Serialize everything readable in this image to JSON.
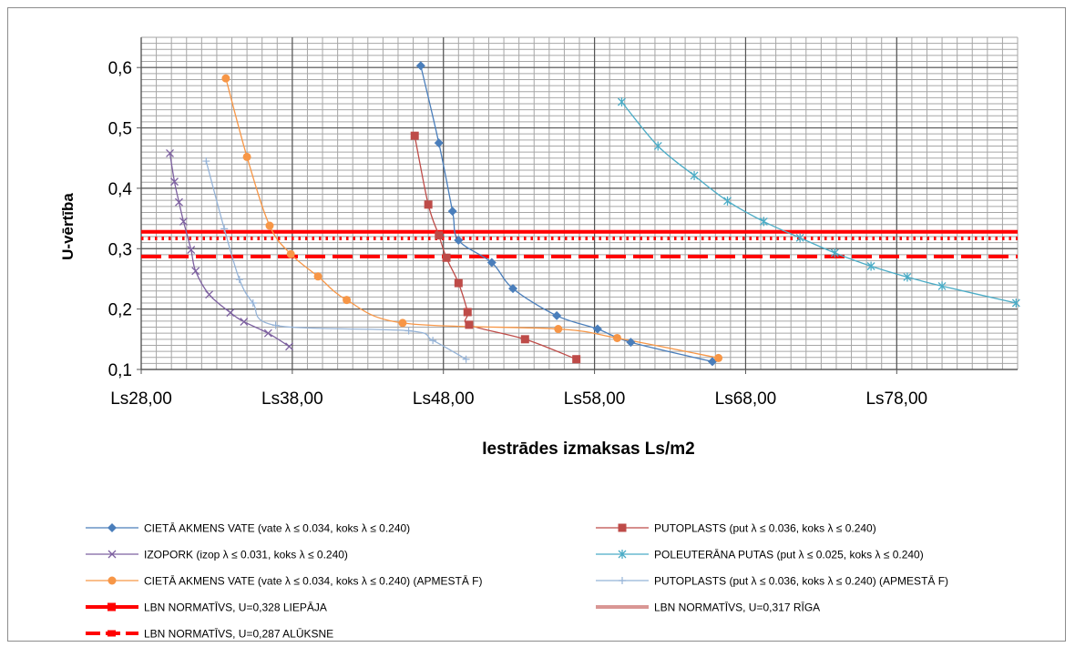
{
  "chart_data": {
    "type": "scatter",
    "title": "",
    "xlabel": "Iestrādes izmaksas Ls/m2",
    "ylabel": "U-vērtība",
    "xlim": [
      28,
      86
    ],
    "ylim": [
      0.1,
      0.65
    ],
    "x_ticks": [
      28,
      38,
      48,
      58,
      68,
      78
    ],
    "x_tick_labels": [
      "Ls28,00",
      "Ls38,00",
      "Ls48,00",
      "Ls58,00",
      "Ls68,00",
      "Ls78,00"
    ],
    "y_ticks": [
      0.1,
      0.2,
      0.3,
      0.4,
      0.5,
      0.6
    ],
    "y_tick_labels": [
      "0,1",
      "0,2",
      "0,3",
      "0,4",
      "0,5",
      "0,6"
    ],
    "grid": true,
    "minor_grid": {
      "x_step": 1,
      "y_step": 0.01
    },
    "legend_position": "bottom",
    "series": [
      {
        "name": "CIETĀ AKMENS VATE (vate λ ≤ 0.034, koks λ ≤ 0.240)",
        "color": "#4a7ebb",
        "marker": "diamond",
        "line": "smooth",
        "x": [
          46.5,
          47.7,
          48.6,
          49.0,
          51.2,
          52.6,
          55.5,
          58.2,
          60.4,
          65.8
        ],
        "y": [
          0.603,
          0.475,
          0.362,
          0.314,
          0.277,
          0.234,
          0.189,
          0.167,
          0.145,
          0.113
        ]
      },
      {
        "name": "PUTOPLASTS (put λ ≤ 0.036, koks λ ≤ 0.240)",
        "color": "#be4b48",
        "marker": "square",
        "line": "smooth",
        "x": [
          46.1,
          47.0,
          47.7,
          48.2,
          49.0,
          49.6,
          49.7,
          53.4,
          56.8
        ],
        "y": [
          0.487,
          0.373,
          0.322,
          0.285,
          0.243,
          0.195,
          0.174,
          0.15,
          0.117
        ]
      },
      {
        "name": "IZOPORK (izop λ ≤ 0.031, koks λ ≤ 0.240)",
        "color": "#7d60a0",
        "marker": "x",
        "line": "smooth",
        "x": [
          29.9,
          30.2,
          30.5,
          30.8,
          31.3,
          31.6,
          32.5,
          33.9,
          34.8,
          36.4,
          37.8
        ],
        "y": [
          0.458,
          0.411,
          0.377,
          0.345,
          0.298,
          0.263,
          0.224,
          0.194,
          0.179,
          0.16,
          0.138
        ]
      },
      {
        "name": "POLEUTERĀNA PUTAS (put λ ≤ 0.025, koks λ ≤ 0.240)",
        "color": "#4bacc6",
        "marker": "asterisk",
        "line": "smooth",
        "x": [
          59.8,
          62.2,
          64.6,
          66.8,
          69.2,
          71.6,
          73.9,
          76.3,
          78.7,
          81.0,
          85.9
        ],
        "y": [
          0.543,
          0.47,
          0.421,
          0.379,
          0.345,
          0.318,
          0.293,
          0.271,
          0.253,
          0.238,
          0.21
        ]
      },
      {
        "name": "CIETĀ AKMENS VATE (vate λ ≤ 0.034, koks λ ≤ 0.240) (APMESTĀ F)",
        "color": "#f79646",
        "marker": "circle",
        "line": "smooth",
        "x": [
          33.6,
          35.0,
          36.5,
          37.9,
          39.7,
          41.6,
          45.3,
          55.6,
          59.5,
          66.2
        ],
        "y": [
          0.582,
          0.452,
          0.338,
          0.291,
          0.254,
          0.215,
          0.177,
          0.167,
          0.152,
          0.119
        ]
      },
      {
        "name": "PUTOPLASTS (put λ ≤ 0.036, koks λ ≤ 0.240) (APMESTĀ F)",
        "color": "#95b3d7",
        "marker": "plus",
        "line": "smooth",
        "x": [
          32.3,
          33.5,
          34.5,
          35.4,
          36.9,
          45.7,
          47.3,
          49.5
        ],
        "y": [
          0.445,
          0.333,
          0.249,
          0.21,
          0.173,
          0.164,
          0.148,
          0.117
        ]
      },
      {
        "name": "LBN NORMATĪVS, U=0,328 LIEPĀJA",
        "color": "#ff0000",
        "style": "solid",
        "x": [
          28,
          86
        ],
        "y": [
          0.328,
          0.328
        ]
      },
      {
        "name": "LBN NORMATĪVS, U=0,317 RĪGA",
        "color": "#ff0000",
        "style": "dotted",
        "legend_color": "#d99694",
        "x": [
          28,
          86
        ],
        "y": [
          0.317,
          0.317
        ]
      },
      {
        "name": "LBN NORMATĪVS, U=0,287 ALŪKSNE",
        "color": "#ff0000",
        "style": "dashed",
        "x": [
          28,
          86
        ],
        "y": [
          0.287,
          0.287
        ]
      }
    ]
  }
}
